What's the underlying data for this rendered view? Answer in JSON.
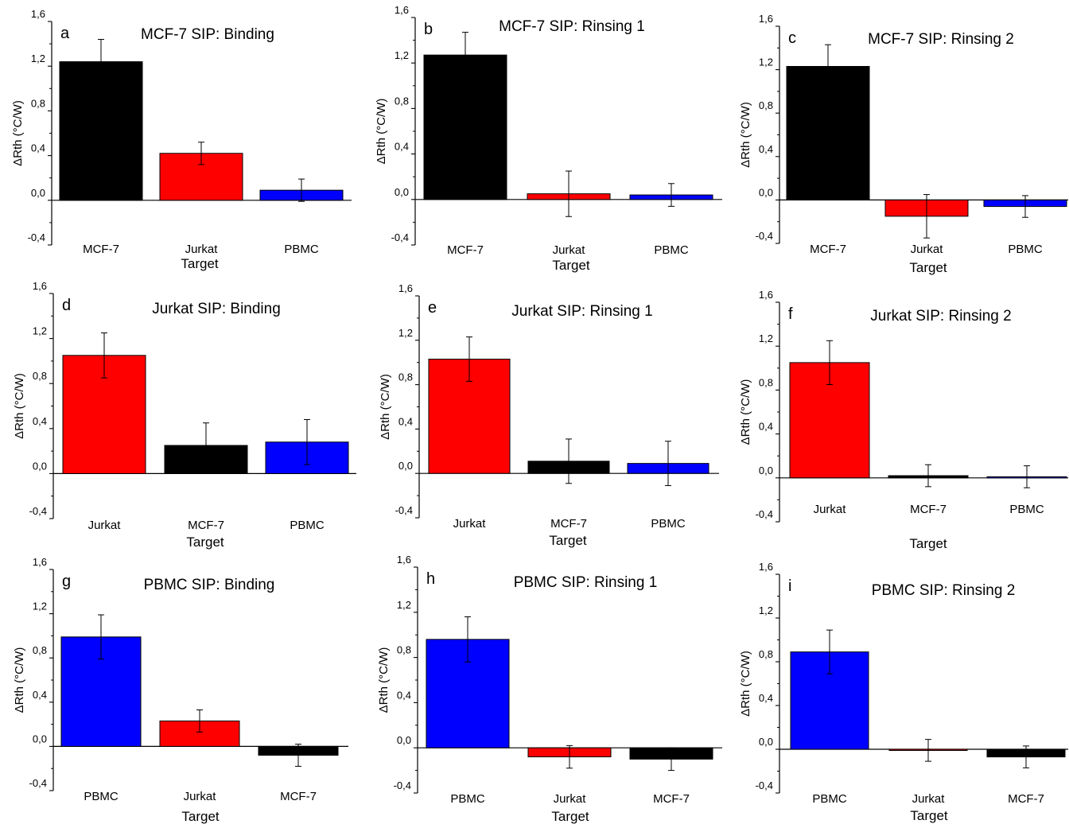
{
  "chart_data": [
    {
      "type": "bar",
      "panel_label": "a",
      "title": "MCF-7 SIP: Binding",
      "ylabel": "ΔRth (°C/W)",
      "xlabel": "Target",
      "categories": [
        "MCF-7",
        "Jurkat",
        "PBMC"
      ],
      "values": [
        1.24,
        0.42,
        0.09
      ],
      "errors": [
        0.2,
        0.1,
        0.1
      ],
      "colors": [
        "#000000",
        "#ff0000",
        "#0000ff"
      ],
      "ylim": [
        -0.4,
        1.6
      ],
      "yticks": [
        "-0,4",
        "0,0",
        "0,4",
        "0,8",
        "1,2",
        "1,6"
      ]
    },
    {
      "type": "bar",
      "panel_label": "b",
      "title": "MCF-7 SIP: Rinsing 1",
      "ylabel": "ΔRth (°C/W)",
      "xlabel": "Target",
      "categories": [
        "MCF-7",
        "Jurkat",
        "PBMC"
      ],
      "values": [
        1.27,
        0.05,
        0.04
      ],
      "errors": [
        0.2,
        0.2,
        0.1
      ],
      "colors": [
        "#000000",
        "#ff0000",
        "#0000ff"
      ],
      "ylim": [
        -0.4,
        1.6
      ],
      "yticks": [
        "-0,4",
        "0,0",
        "0,4",
        "0,8",
        "1,2",
        "1,6"
      ]
    },
    {
      "type": "bar",
      "panel_label": "c",
      "title": "MCF-7 SIP: Rinsing 2",
      "ylabel": "ΔRth (°C/W)",
      "xlabel": "Target",
      "categories": [
        "MCF-7",
        "Jurkat",
        "PBMC"
      ],
      "values": [
        1.23,
        -0.15,
        -0.06
      ],
      "errors": [
        0.2,
        0.2,
        0.1
      ],
      "colors": [
        "#000000",
        "#ff0000",
        "#0000ff"
      ],
      "ylim": [
        -0.4,
        1.6
      ],
      "yticks": [
        "-0,4",
        "0,0",
        "0,4",
        "0,8",
        "1,2",
        "1,6"
      ]
    },
    {
      "type": "bar",
      "panel_label": "d",
      "title": "Jurkat SIP: Binding",
      "ylabel": "ΔRth (°C/W)",
      "xlabel": "Target",
      "categories": [
        "Jurkat",
        "MCF-7",
        "PBMC"
      ],
      "values": [
        1.05,
        0.25,
        0.28
      ],
      "errors": [
        0.2,
        0.2,
        0.2
      ],
      "colors": [
        "#ff0000",
        "#000000",
        "#0000ff"
      ],
      "ylim": [
        -0.4,
        1.6
      ],
      "yticks": [
        "-0,4",
        "0,0",
        "0,4",
        "0,8",
        "1,2",
        "1,6"
      ]
    },
    {
      "type": "bar",
      "panel_label": "e",
      "title": "Jurkat SIP: Rinsing 1",
      "ylabel": "ΔRth (°C/W)",
      "xlabel": "Target",
      "categories": [
        "Jurkat",
        "MCF-7",
        "PBMC"
      ],
      "values": [
        1.03,
        0.11,
        0.09
      ],
      "errors": [
        0.2,
        0.2,
        0.2
      ],
      "colors": [
        "#ff0000",
        "#000000",
        "#0000ff"
      ],
      "ylim": [
        -0.4,
        1.6
      ],
      "yticks": [
        "-0,4",
        "0,0",
        "0,4",
        "0,8",
        "1,2",
        "1,6"
      ]
    },
    {
      "type": "bar",
      "panel_label": "f",
      "title": "Jurkat SIP: Rinsing 2",
      "ylabel": "ΔRth (°C/W)",
      "xlabel": "Target",
      "categories": [
        "Jurkat",
        "MCF-7",
        "PBMC"
      ],
      "values": [
        1.05,
        0.02,
        0.01
      ],
      "errors": [
        0.2,
        0.1,
        0.1
      ],
      "colors": [
        "#ff0000",
        "#000000",
        "#0000ff"
      ],
      "ylim": [
        -0.4,
        1.6
      ],
      "yticks": [
        "-0,4",
        "0,0",
        "0,4",
        "0,8",
        "1,2",
        "1,6"
      ]
    },
    {
      "type": "bar",
      "panel_label": "g",
      "title": "PBMC SIP: Binding",
      "ylabel": "ΔRth (°C/W)",
      "xlabel": "Target",
      "categories": [
        "PBMC",
        "Jurkat",
        "MCF-7"
      ],
      "values": [
        0.99,
        0.23,
        -0.08
      ],
      "errors": [
        0.2,
        0.1,
        0.1
      ],
      "colors": [
        "#0000ff",
        "#ff0000",
        "#000000"
      ],
      "ylim": [
        -0.4,
        1.6
      ],
      "yticks": [
        "-0,4",
        "0,0",
        "0,4",
        "0,8",
        "1,2",
        "1,6"
      ]
    },
    {
      "type": "bar",
      "panel_label": "h",
      "title": "PBMC SIP: Rinsing 1",
      "ylabel": "ΔRth (°C/W)",
      "xlabel": "Target",
      "categories": [
        "PBMC",
        "Jurkat",
        "MCF-7"
      ],
      "values": [
        0.96,
        -0.08,
        -0.1
      ],
      "errors": [
        0.2,
        0.1,
        0.1
      ],
      "colors": [
        "#0000ff",
        "#ff0000",
        "#000000"
      ],
      "ylim": [
        -0.4,
        1.6
      ],
      "yticks": [
        "-0,4",
        "0,0",
        "0,4",
        "0,8",
        "1,2",
        "1,6"
      ]
    },
    {
      "type": "bar",
      "panel_label": "i",
      "title": "PBMC SIP: Rinsing 2",
      "ylabel": "ΔRth (°C/W)",
      "xlabel": "Target",
      "categories": [
        "PBMC",
        "Jurkat",
        "MCF-7"
      ],
      "values": [
        0.89,
        -0.01,
        -0.07
      ],
      "errors": [
        0.2,
        0.1,
        0.1
      ],
      "colors": [
        "#0000ff",
        "#ff0000",
        "#000000"
      ],
      "ylim": [
        -0.4,
        1.6
      ],
      "yticks": [
        "-0,4",
        "0,0",
        "0,4",
        "0,8",
        "1,2",
        "1,6"
      ]
    }
  ]
}
